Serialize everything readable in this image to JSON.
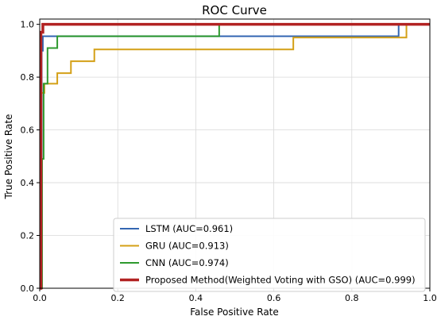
{
  "chart_data": {
    "type": "line",
    "title": "ROC Curve",
    "xlabel": "False Positive Rate",
    "ylabel": "True Positive Rate",
    "xlim": [
      0,
      1
    ],
    "ylim": [
      0,
      1.02
    ],
    "xticks": [
      0.0,
      0.2,
      0.4,
      0.6,
      0.8,
      1.0
    ],
    "yticks": [
      0.0,
      0.2,
      0.4,
      0.6,
      0.8,
      1.0
    ],
    "xtick_labels": [
      "0.0",
      "0.2",
      "0.4",
      "0.6",
      "0.8",
      "1.0"
    ],
    "ytick_labels": [
      "0.0",
      "0.2",
      "0.4",
      "0.6",
      "0.8",
      "1.0"
    ],
    "grid": true,
    "legend_position": "bottom-right",
    "series": [
      {
        "name": "LSTM (AUC=0.961)",
        "color": "#3366b2",
        "x": [
          0,
          0.005,
          0.005,
          0.008,
          0.008,
          0.92,
          0.92,
          1.0
        ],
        "y": [
          0,
          0,
          0.9,
          0.9,
          0.955,
          0.955,
          1.0,
          1.0
        ]
      },
      {
        "name": "GRU (AUC=0.913)",
        "color": "#d4a017",
        "x": [
          0,
          0.003,
          0.003,
          0.012,
          0.012,
          0.045,
          0.045,
          0.08,
          0.08,
          0.14,
          0.14,
          0.65,
          0.65,
          0.94,
          0.94,
          1.0
        ],
        "y": [
          0,
          0,
          0.74,
          0.74,
          0.775,
          0.775,
          0.815,
          0.815,
          0.86,
          0.86,
          0.905,
          0.905,
          0.95,
          0.95,
          1.0,
          1.0
        ]
      },
      {
        "name": "CNN (AUC=0.974)",
        "color": "#2e9a2e",
        "x": [
          0,
          0.006,
          0.006,
          0.01,
          0.01,
          0.02,
          0.02,
          0.045,
          0.045,
          0.46,
          0.46,
          1.0
        ],
        "y": [
          0,
          0,
          0.49,
          0.49,
          0.775,
          0.775,
          0.91,
          0.91,
          0.955,
          0.955,
          1.0,
          1.0
        ]
      },
      {
        "name": "Proposed Method(Weighted Voting with GSO) (AUC=0.999)",
        "color": "#b22222",
        "x": [
          0,
          0.003,
          0.003,
          0.008,
          0.008,
          1.0
        ],
        "y": [
          0,
          0,
          0.97,
          0.97,
          1.0,
          1.0
        ]
      }
    ]
  }
}
